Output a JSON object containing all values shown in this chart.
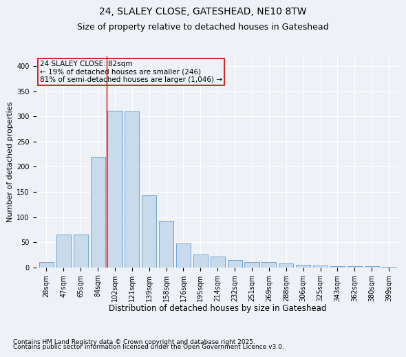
{
  "title1": "24, SLALEY CLOSE, GATESHEAD, NE10 8TW",
  "title2": "Size of property relative to detached houses in Gateshead",
  "xlabel": "Distribution of detached houses by size in Gateshead",
  "ylabel": "Number of detached properties",
  "categories": [
    "28sqm",
    "47sqm",
    "65sqm",
    "84sqm",
    "102sqm",
    "121sqm",
    "139sqm",
    "158sqm",
    "176sqm",
    "195sqm",
    "214sqm",
    "232sqm",
    "251sqm",
    "269sqm",
    "288sqm",
    "306sqm",
    "325sqm",
    "343sqm",
    "362sqm",
    "380sqm",
    "399sqm"
  ],
  "values": [
    10,
    65,
    65,
    220,
    312,
    310,
    143,
    92,
    48,
    25,
    22,
    15,
    11,
    10,
    8,
    5,
    4,
    3,
    2,
    2,
    1
  ],
  "bar_color": "#c9daea",
  "bar_edge_color": "#5b9bd5",
  "vline_x_index": 3.5,
  "vline_color": "#cc0000",
  "annotation_text": "24 SLALEY CLOSE: 82sqm\n← 19% of detached houses are smaller (246)\n81% of semi-detached houses are larger (1,046) →",
  "annotation_box_color": "#cc0000",
  "ylim": [
    0,
    420
  ],
  "yticks": [
    0,
    50,
    100,
    150,
    200,
    250,
    300,
    350,
    400
  ],
  "footnote1": "Contains HM Land Registry data © Crown copyright and database right 2025.",
  "footnote2": "Contains public sector information licensed under the Open Government Licence v3.0.",
  "background_color": "#eef2f7",
  "grid_color": "#ffffff",
  "title1_fontsize": 10,
  "title2_fontsize": 9,
  "xlabel_fontsize": 8.5,
  "ylabel_fontsize": 8,
  "tick_fontsize": 7,
  "annot_fontsize": 7.5,
  "footnote_fontsize": 6.5
}
